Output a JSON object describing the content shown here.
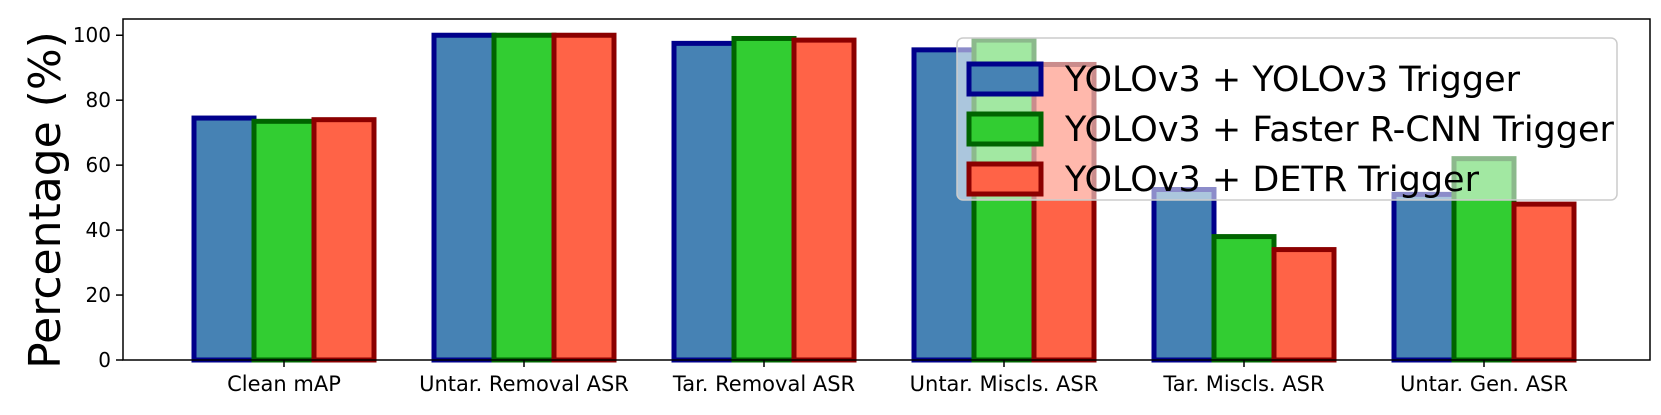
{
  "chart_data": {
    "type": "bar",
    "title": "",
    "xlabel": "",
    "ylabel": "Percentage (%)",
    "ylim": [
      0,
      105
    ],
    "yticks": [
      0,
      20,
      40,
      60,
      80,
      100
    ],
    "grid": false,
    "legend_position": "top-right",
    "categories": [
      "Clean mAP",
      "Untar. Removal ASR",
      "Tar. Removal ASR",
      "Untar. Miscls. ASR",
      "Tar. Miscls. ASR",
      "Untar. Gen. ASR"
    ],
    "series": [
      {
        "name": "YOLOv3 + YOLOv3 Trigger",
        "fill": "#4682b4",
        "edge": "#00008b",
        "values": [
          74.5,
          100,
          97.5,
          95.5,
          52.5,
          51
        ]
      },
      {
        "name": "YOLOv3 + Faster R-CNN Trigger",
        "fill": "#32cd32",
        "edge": "#006400",
        "values": [
          73.5,
          100,
          99,
          98.5,
          38,
          62
        ]
      },
      {
        "name": "YOLOv3 + DETR Trigger",
        "fill": "#ff6347",
        "edge": "#8b0000",
        "values": [
          74,
          100,
          98.5,
          91,
          34,
          48
        ]
      }
    ]
  }
}
